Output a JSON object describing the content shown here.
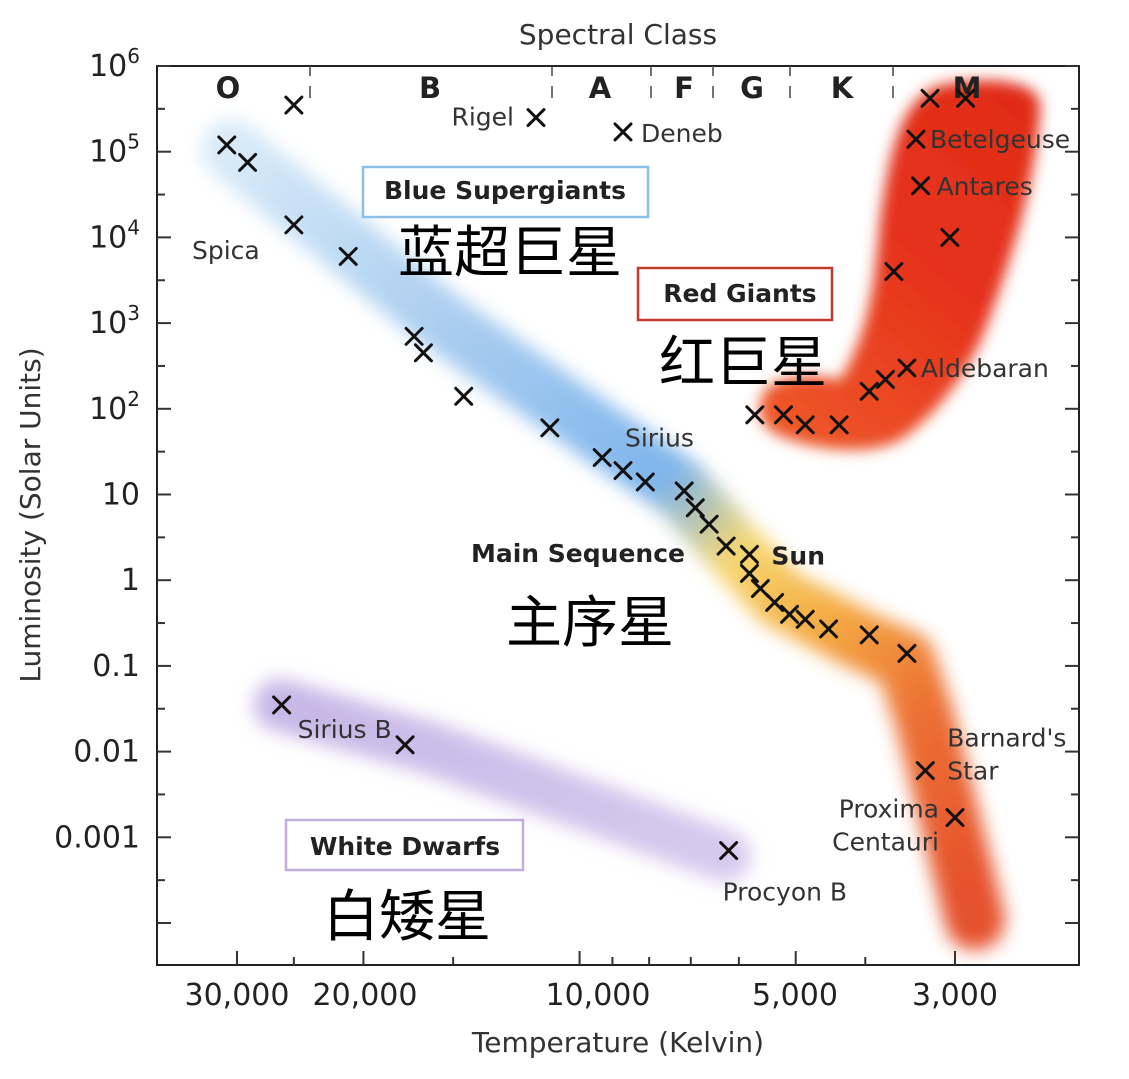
{
  "chart_data": {
    "type": "scatter",
    "title": "Spectral Class",
    "xlabel": "Temperature (Kelvin)",
    "ylabel": "Luminosity (Solar Units)",
    "x_scale": "log",
    "x_reversed": true,
    "y_scale": "log",
    "y_tick_labels": [
      "10^6",
      "10^5",
      "10^4",
      "10^3",
      "10^2",
      "10",
      "1",
      "0.1",
      "0.01",
      "0.001"
    ],
    "x_tick_labels": [
      "30,000",
      "20,000",
      "10,000",
      "5,000",
      "3,000"
    ],
    "spectral_classes": [
      "O",
      "B",
      "A",
      "F",
      "G",
      "K",
      "M"
    ],
    "regions": [
      {
        "name": "Blue Supergiants",
        "name_cn": "蓝超巨星",
        "color": "#5aa0e0"
      },
      {
        "name": "Red Giants",
        "name_cn": "红巨星",
        "color": "#e2351c"
      },
      {
        "name": "Main Sequence",
        "name_cn": "主序星",
        "color": "#f4b63a"
      },
      {
        "name": "White Dwarfs",
        "name_cn": "白矮星",
        "color": "#a98ed3"
      }
    ],
    "stars": [
      {
        "name": "",
        "x": 25000,
        "y": 350000
      },
      {
        "name": "Rigel",
        "x": 11500,
        "y": 250000
      },
      {
        "name": "Deneb",
        "x": 8700,
        "y": 170000
      },
      {
        "name": "",
        "x": 31000,
        "y": 120000
      },
      {
        "name": "",
        "x": 29000,
        "y": 75000
      },
      {
        "name": "Spica",
        "x": 25000,
        "y": 14000
      },
      {
        "name": "",
        "x": 21000,
        "y": 6000
      },
      {
        "name": "",
        "x": 17000,
        "y": 700
      },
      {
        "name": "",
        "x": 16500,
        "y": 450
      },
      {
        "name": "",
        "x": 14500,
        "y": 140
      },
      {
        "name": "",
        "x": 11000,
        "y": 60
      },
      {
        "name": "",
        "x": 9300,
        "y": 27
      },
      {
        "name": "Sirius",
        "x": 8700,
        "y": 19
      },
      {
        "name": "",
        "x": 8100,
        "y": 14
      },
      {
        "name": "",
        "x": 7150,
        "y": 11
      },
      {
        "name": "",
        "x": 6900,
        "y": 7
      },
      {
        "name": "",
        "x": 6600,
        "y": 4.5
      },
      {
        "name": "",
        "x": 6250,
        "y": 2.5
      },
      {
        "name": "Sun",
        "x": 5800,
        "y": 2
      },
      {
        "name": "",
        "x": 5800,
        "y": 1.2
      },
      {
        "name": "",
        "x": 5600,
        "y": 0.8
      },
      {
        "name": "",
        "x": 5350,
        "y": 0.55
      },
      {
        "name": "",
        "x": 5100,
        "y": 0.4
      },
      {
        "name": "",
        "x": 4850,
        "y": 0.35
      },
      {
        "name": "",
        "x": 4500,
        "y": 0.27
      },
      {
        "name": "",
        "x": 3950,
        "y": 0.23
      },
      {
        "name": "",
        "x": 3500,
        "y": 0.14
      },
      {
        "name": "",
        "x": 5700,
        "y": 85
      },
      {
        "name": "",
        "x": 5200,
        "y": 85
      },
      {
        "name": "",
        "x": 4850,
        "y": 65
      },
      {
        "name": "",
        "x": 4350,
        "y": 65
      },
      {
        "name": "",
        "x": 3950,
        "y": 160
      },
      {
        "name": "",
        "x": 3750,
        "y": 220
      },
      {
        "name": "Aldebaran",
        "x": 3500,
        "y": 300
      },
      {
        "name": "",
        "x": 3650,
        "y": 4000
      },
      {
        "name": "",
        "x": 3050,
        "y": 10000
      },
      {
        "name": "Antares",
        "x": 3350,
        "y": 40000
      },
      {
        "name": "Betelgeuse",
        "x": 3400,
        "y": 140000
      },
      {
        "name": "",
        "x": 3250,
        "y": 420000
      },
      {
        "name": "",
        "x": 2900,
        "y": 420000
      },
      {
        "name": "Sirius B",
        "x": 26000,
        "y": 0.035
      },
      {
        "name": "",
        "x": 17500,
        "y": 0.012
      },
      {
        "name": "Procyon B",
        "x": 6200,
        "y": 0.0007
      },
      {
        "name": "Barnard's Star",
        "x": 3300,
        "y": 0.006
      },
      {
        "name": "Proxima Centauri",
        "x": 3000,
        "y": 0.0017
      }
    ]
  }
}
